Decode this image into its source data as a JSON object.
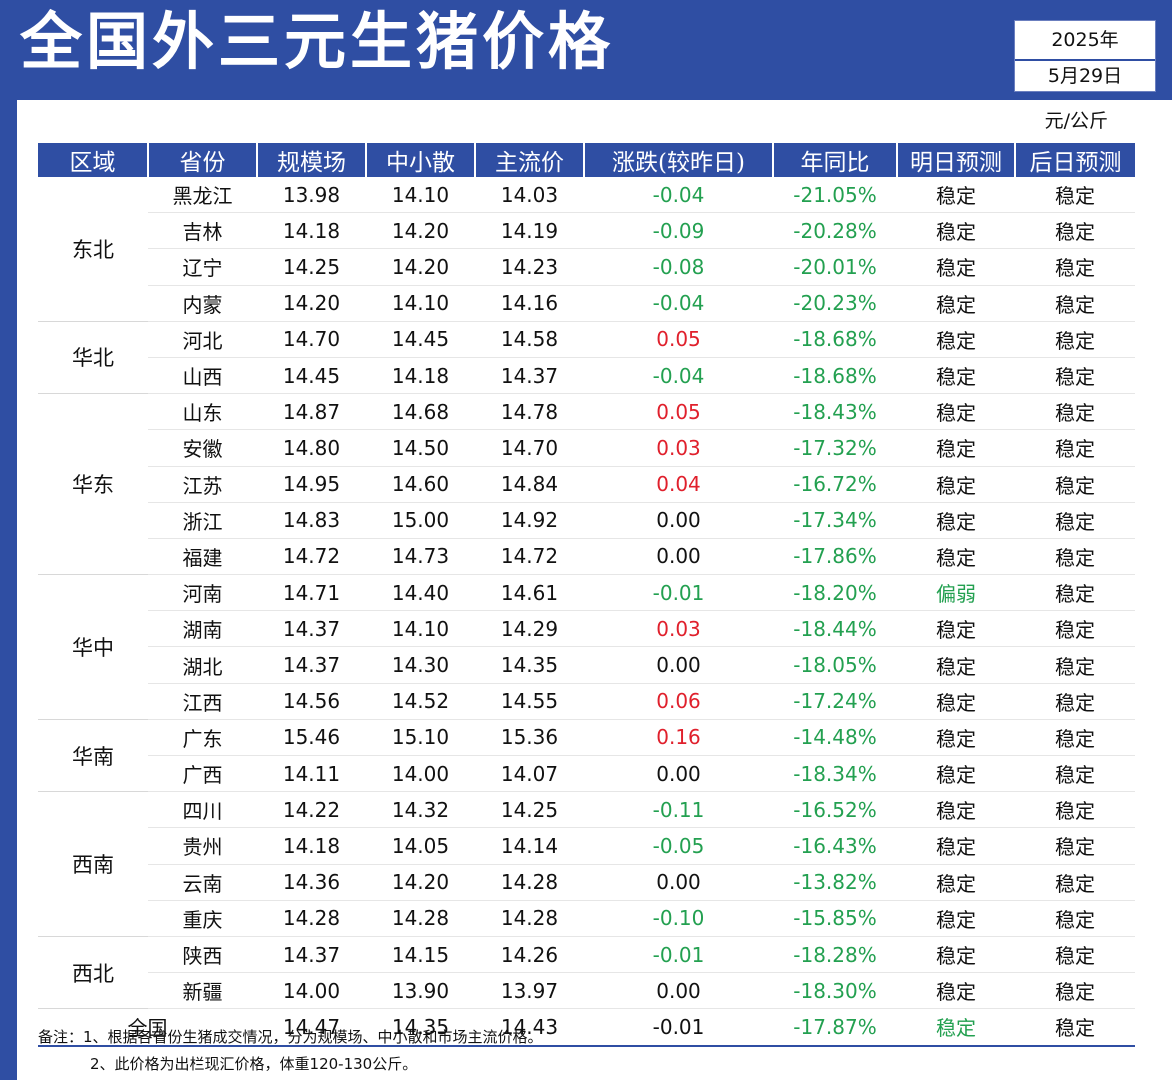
{
  "title": "全国外三元生猪价格",
  "date": {
    "year": "2025年",
    "day": "5月29日"
  },
  "unit": "元/公斤",
  "headers": [
    "区域",
    "省份",
    "规模场",
    "中小散",
    "主流价",
    "涨跌(较昨日)",
    "年同比",
    "明日预测",
    "后日预测"
  ],
  "regions": [
    {
      "name": "东北",
      "rows": [
        [
          "黑龙江",
          "13.98",
          "14.10",
          "14.03",
          "-0.04",
          "-21.05%",
          "稳定",
          "稳定"
        ],
        [
          "吉林",
          "14.18",
          "14.20",
          "14.19",
          "-0.09",
          "-20.28%",
          "稳定",
          "稳定"
        ],
        [
          "辽宁",
          "14.25",
          "14.20",
          "14.23",
          "-0.08",
          "-20.01%",
          "稳定",
          "稳定"
        ],
        [
          "内蒙",
          "14.20",
          "14.10",
          "14.16",
          "-0.04",
          "-20.23%",
          "稳定",
          "稳定"
        ]
      ]
    },
    {
      "name": "华北",
      "rows": [
        [
          "河北",
          "14.70",
          "14.45",
          "14.58",
          "0.05",
          "-18.68%",
          "稳定",
          "稳定"
        ],
        [
          "山西",
          "14.45",
          "14.18",
          "14.37",
          "-0.04",
          "-18.68%",
          "稳定",
          "稳定"
        ]
      ]
    },
    {
      "name": "华东",
      "rows": [
        [
          "山东",
          "14.87",
          "14.68",
          "14.78",
          "0.05",
          "-18.43%",
          "稳定",
          "稳定"
        ],
        [
          "安徽",
          "14.80",
          "14.50",
          "14.70",
          "0.03",
          "-17.32%",
          "稳定",
          "稳定"
        ],
        [
          "江苏",
          "14.95",
          "14.60",
          "14.84",
          "0.04",
          "-16.72%",
          "稳定",
          "稳定"
        ],
        [
          "浙江",
          "14.83",
          "15.00",
          "14.92",
          "0.00",
          "-17.34%",
          "稳定",
          "稳定"
        ],
        [
          "福建",
          "14.72",
          "14.73",
          "14.72",
          "0.00",
          "-17.86%",
          "稳定",
          "稳定"
        ]
      ]
    },
    {
      "name": "华中",
      "rows": [
        [
          "河南",
          "14.71",
          "14.40",
          "14.61",
          "-0.01",
          "-18.20%",
          "偏弱",
          "稳定"
        ],
        [
          "湖南",
          "14.37",
          "14.10",
          "14.29",
          "0.03",
          "-18.44%",
          "稳定",
          "稳定"
        ],
        [
          "湖北",
          "14.37",
          "14.30",
          "14.35",
          "0.00",
          "-18.05%",
          "稳定",
          "稳定"
        ],
        [
          "江西",
          "14.56",
          "14.52",
          "14.55",
          "0.06",
          "-17.24%",
          "稳定",
          "稳定"
        ]
      ]
    },
    {
      "name": "华南",
      "rows": [
        [
          "广东",
          "15.46",
          "15.10",
          "15.36",
          "0.16",
          "-14.48%",
          "稳定",
          "稳定"
        ],
        [
          "广西",
          "14.11",
          "14.00",
          "14.07",
          "0.00",
          "-18.34%",
          "稳定",
          "稳定"
        ]
      ]
    },
    {
      "name": "西南",
      "rows": [
        [
          "四川",
          "14.22",
          "14.32",
          "14.25",
          "-0.11",
          "-16.52%",
          "稳定",
          "稳定"
        ],
        [
          "贵州",
          "14.18",
          "14.05",
          "14.14",
          "-0.05",
          "-16.43%",
          "稳定",
          "稳定"
        ],
        [
          "云南",
          "14.36",
          "14.20",
          "14.28",
          "0.00",
          "-13.82%",
          "稳定",
          "稳定"
        ],
        [
          "重庆",
          "14.28",
          "14.28",
          "14.28",
          "-0.10",
          "-15.85%",
          "稳定",
          "稳定"
        ]
      ]
    },
    {
      "name": "西北",
      "rows": [
        [
          "陕西",
          "14.37",
          "14.15",
          "14.26",
          "-0.01",
          "-18.28%",
          "稳定",
          "稳定"
        ],
        [
          "新疆",
          "14.00",
          "13.90",
          "13.97",
          "0.00",
          "-18.30%",
          "稳定",
          "稳定"
        ]
      ]
    }
  ],
  "national": [
    "全国",
    "14.47",
    "14.35",
    "14.43",
    "-0.01",
    "-17.87%",
    "稳定",
    "稳定"
  ],
  "notes": [
    "备注：1、根据各省份生猪成交情况，分为规模场、中小散和市场主流价格。",
    "2、此价格为出栏现汇价格，体重120-130公斤。"
  ]
}
